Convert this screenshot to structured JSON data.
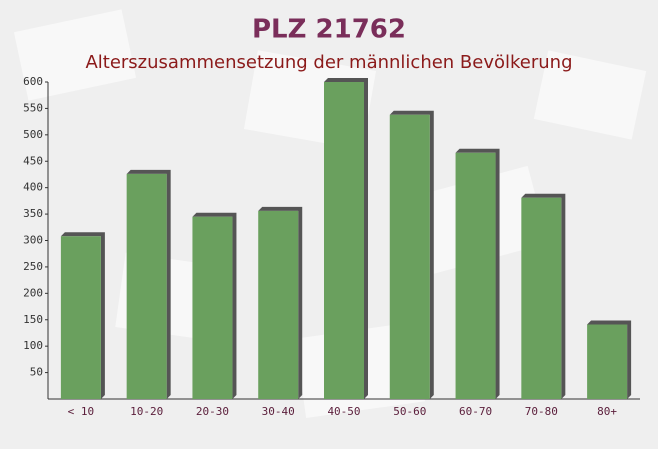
{
  "chart_data": {
    "type": "bar",
    "title": "PLZ 21762",
    "subtitle": "Alterszusammensetzung der männlichen Bevölkerung",
    "categories": [
      "< 10",
      "10-20",
      "20-30",
      "30-40",
      "40-50",
      "50-60",
      "60-70",
      "70-80",
      "80+"
    ],
    "values": [
      308,
      426,
      345,
      356,
      600,
      538,
      466,
      381,
      141
    ],
    "color": "#6aa05e",
    "ylim": [
      0,
      600
    ],
    "yticks": [
      50,
      100,
      150,
      200,
      250,
      300,
      350,
      400,
      450,
      500,
      550,
      600
    ],
    "grid": false
  }
}
